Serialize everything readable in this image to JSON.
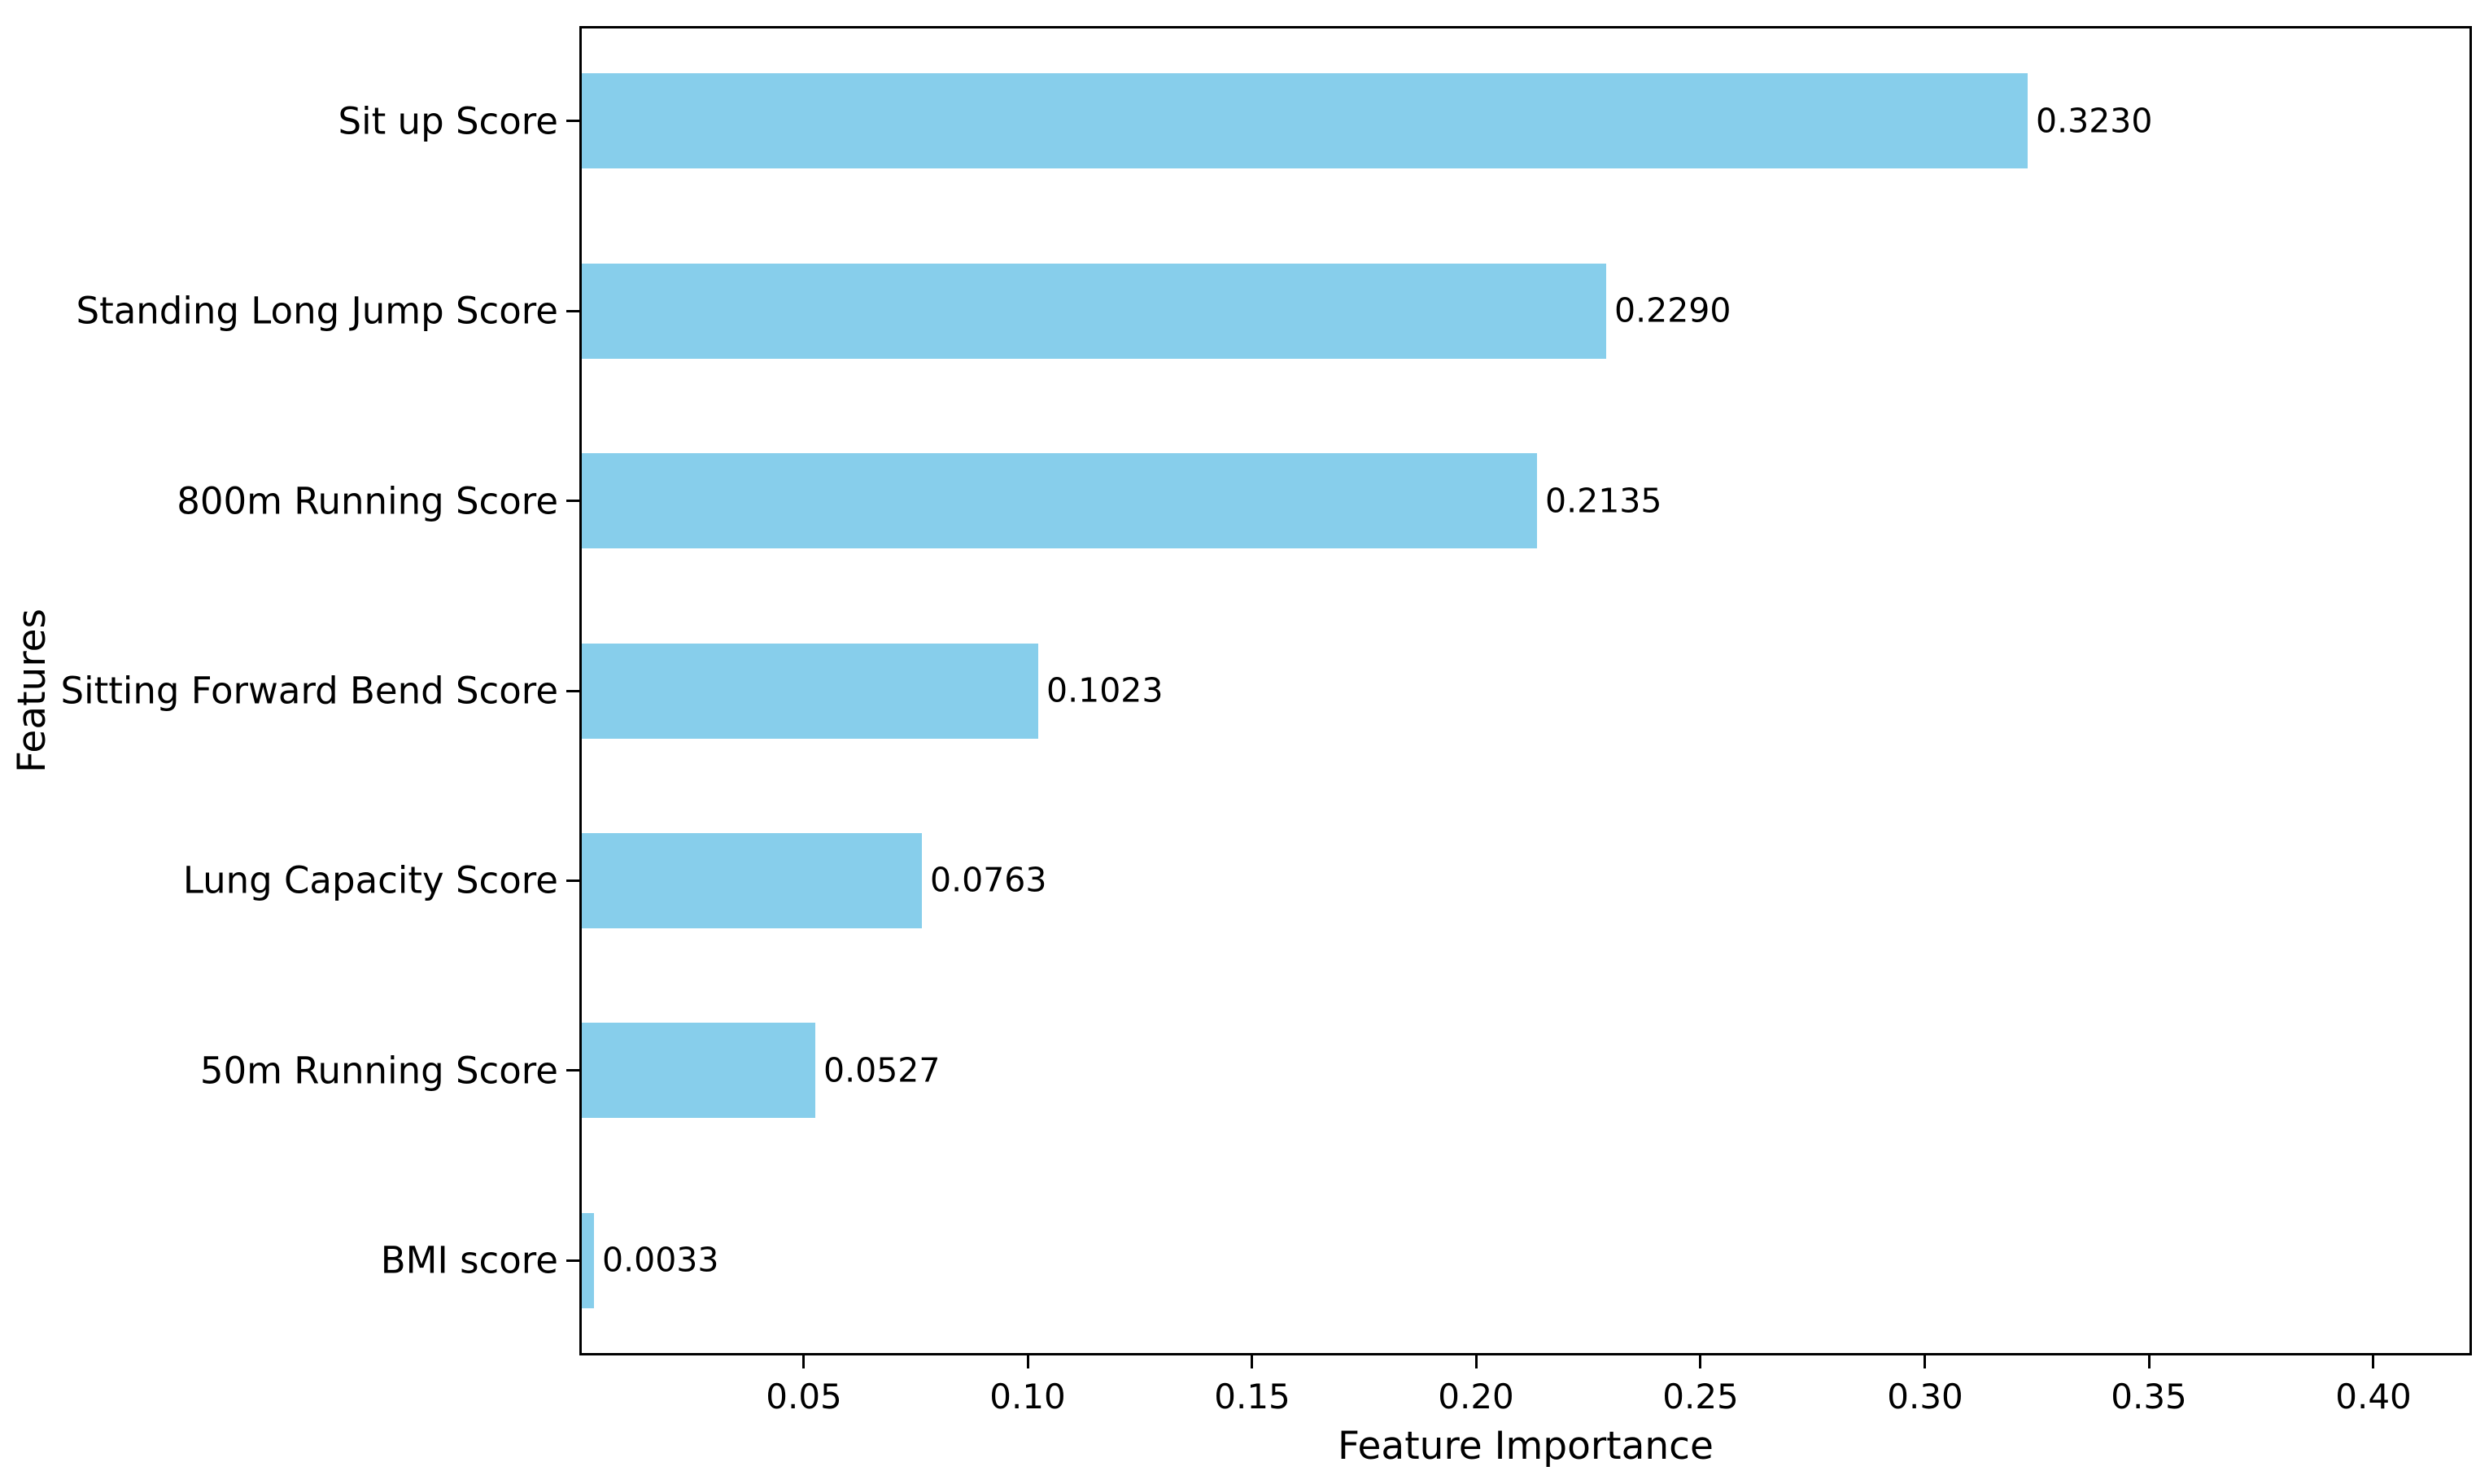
{
  "chart_data": {
    "type": "bar",
    "orientation": "horizontal",
    "title": "",
    "xlabel": "Feature Importance",
    "ylabel": "Features",
    "categories": [
      "Sit up Score",
      "Standing Long Jump Score",
      "800m Running Score",
      "Sitting Forward Bend Score",
      "Lung Capacity Score",
      "50m Running Score",
      "BMI score"
    ],
    "values": [
      0.323,
      0.229,
      0.2135,
      0.1023,
      0.0763,
      0.0527,
      0.0033
    ],
    "value_labels": [
      "0.3230",
      "0.2290",
      "0.2135",
      "0.1023",
      "0.0763",
      "0.0527",
      "0.0033"
    ],
    "x_ticks": [
      0.05,
      0.1,
      0.15,
      0.2,
      0.25,
      0.3,
      0.35,
      0.4
    ],
    "x_tick_labels": [
      "0.05",
      "0.10",
      "0.15",
      "0.20",
      "0.25",
      "0.30",
      "0.35",
      "0.40"
    ],
    "xlim": [
      0,
      0.422
    ],
    "grid": false,
    "legend_position": "none",
    "bar_color": "#87CEEB",
    "text_color": "#000000",
    "axis_color": "#000000"
  }
}
